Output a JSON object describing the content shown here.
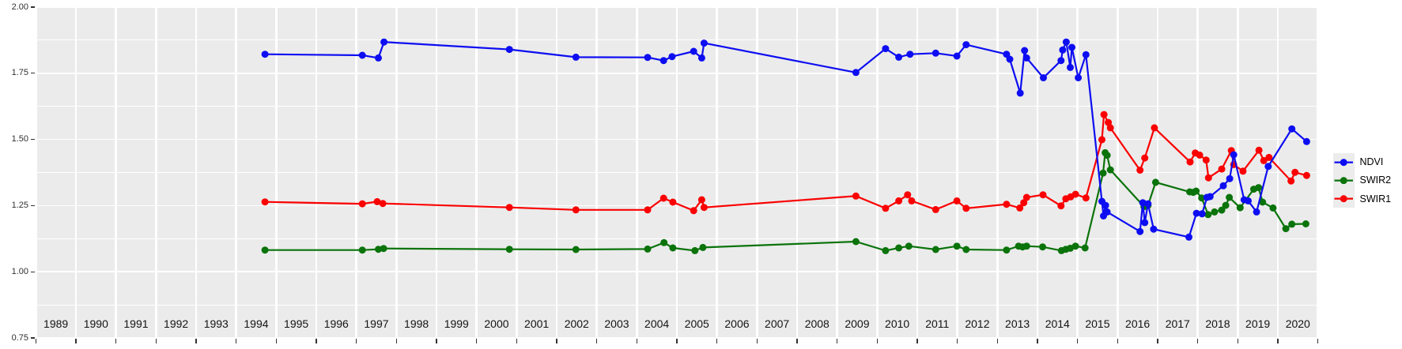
{
  "figure": {
    "background": "#ffffff",
    "panel_background": "#ebebeb",
    "gridline_color": "#ffffff",
    "axis_text_color": "#303030",
    "strip_text_color": "#141414"
  },
  "y_axis": {
    "tick_labels": [
      "2.00",
      "1.75",
      "1.50",
      "1.25",
      "1.00",
      "0.75"
    ],
    "tick_values": [
      2.0,
      1.75,
      1.5,
      1.25,
      1.0,
      0.75
    ],
    "minor_values": [
      1.875,
      1.625,
      1.375,
      1.125,
      0.875
    ]
  },
  "x_axis": {
    "year_labels": [
      "1989",
      "1990",
      "1991",
      "1992",
      "1993",
      "1994",
      "1995",
      "1996",
      "1997",
      "1998",
      "1999",
      "2000",
      "2001",
      "2002",
      "2003",
      "2004",
      "2005",
      "2006",
      "2007",
      "2008",
      "2009",
      "2010",
      "2011",
      "2012",
      "2013",
      "2014",
      "2015",
      "2016",
      "2017",
      "2018",
      "2019",
      "2020"
    ]
  },
  "legend": {
    "position": "right",
    "entries": [
      {
        "label": "NDVI",
        "color": "#0d0df2"
      },
      {
        "label": "SWIR2",
        "color": "#0a730a"
      },
      {
        "label": "SWIR1",
        "color": "#fa0000"
      }
    ]
  },
  "chart_data": {
    "type": "line",
    "title": "",
    "xlabel": "",
    "ylabel": "",
    "x_range": [
      1989,
      2021
    ],
    "ylim": [
      0.75,
      2.0
    ],
    "grid": true,
    "legend_position": "right",
    "series": [
      {
        "name": "NDVI",
        "color": "#0d0df2",
        "points": [
          [
            1994.72,
            1.822
          ],
          [
            1997.15,
            1.818
          ],
          [
            1997.55,
            1.808
          ],
          [
            1997.69,
            1.868
          ],
          [
            2000.82,
            1.84
          ],
          [
            2002.48,
            1.811
          ],
          [
            2004.27,
            1.81
          ],
          [
            2004.67,
            1.798
          ],
          [
            2004.88,
            1.813
          ],
          [
            2005.42,
            1.833
          ],
          [
            2005.62,
            1.808
          ],
          [
            2005.68,
            1.864
          ],
          [
            2009.47,
            1.753
          ],
          [
            2010.21,
            1.843
          ],
          [
            2010.54,
            1.811
          ],
          [
            2010.82,
            1.822
          ],
          [
            2011.46,
            1.826
          ],
          [
            2011.99,
            1.815
          ],
          [
            2012.22,
            1.858
          ],
          [
            2013.23,
            1.822
          ],
          [
            2013.31,
            1.803
          ],
          [
            2013.57,
            1.675
          ],
          [
            2013.68,
            1.836
          ],
          [
            2013.73,
            1.808
          ],
          [
            2014.15,
            1.733
          ],
          [
            2014.59,
            1.798
          ],
          [
            2014.63,
            1.838
          ],
          [
            2014.72,
            1.868
          ],
          [
            2014.82,
            1.772
          ],
          [
            2014.86,
            1.848
          ],
          [
            2015.02,
            1.733
          ],
          [
            2015.21,
            1.82
          ],
          [
            2015.61,
            1.266
          ],
          [
            2015.65,
            1.211
          ],
          [
            2015.7,
            1.251
          ],
          [
            2015.74,
            1.226
          ],
          [
            2016.56,
            1.152
          ],
          [
            2016.63,
            1.261
          ],
          [
            2016.68,
            1.186
          ],
          [
            2016.76,
            1.257
          ],
          [
            2016.9,
            1.161
          ],
          [
            2017.78,
            1.131
          ],
          [
            2017.97,
            1.221
          ],
          [
            2018.11,
            1.219
          ],
          [
            2018.23,
            1.281
          ],
          [
            2018.31,
            1.284
          ],
          [
            2018.64,
            1.325
          ],
          [
            2018.8,
            1.352
          ],
          [
            2018.9,
            1.442
          ],
          [
            2019.16,
            1.272
          ],
          [
            2019.26,
            1.268
          ],
          [
            2019.47,
            1.226
          ],
          [
            2019.76,
            1.398
          ],
          [
            2020.35,
            1.54
          ],
          [
            2020.72,
            1.492
          ]
        ]
      },
      {
        "name": "SWIR2",
        "color": "#0a730a",
        "points": [
          [
            1994.72,
            1.082
          ],
          [
            1997.15,
            1.082
          ],
          [
            1997.55,
            1.085
          ],
          [
            1997.68,
            1.088
          ],
          [
            2000.82,
            1.085
          ],
          [
            2002.48,
            1.084
          ],
          [
            2004.27,
            1.086
          ],
          [
            2004.68,
            1.11
          ],
          [
            2004.9,
            1.09
          ],
          [
            2005.45,
            1.08
          ],
          [
            2005.65,
            1.092
          ],
          [
            2009.47,
            1.114
          ],
          [
            2010.21,
            1.08
          ],
          [
            2010.54,
            1.09
          ],
          [
            2010.79,
            1.097
          ],
          [
            2011.46,
            1.084
          ],
          [
            2011.99,
            1.097
          ],
          [
            2012.22,
            1.084
          ],
          [
            2013.23,
            1.082
          ],
          [
            2013.53,
            1.097
          ],
          [
            2013.63,
            1.094
          ],
          [
            2013.73,
            1.097
          ],
          [
            2014.13,
            1.094
          ],
          [
            2014.6,
            1.08
          ],
          [
            2014.71,
            1.085
          ],
          [
            2014.82,
            1.089
          ],
          [
            2014.95,
            1.097
          ],
          [
            2015.19,
            1.09
          ],
          [
            2015.64,
            1.373
          ],
          [
            2015.69,
            1.45
          ],
          [
            2015.74,
            1.44
          ],
          [
            2015.82,
            1.385
          ],
          [
            2016.66,
            1.246
          ],
          [
            2016.76,
            1.251
          ],
          [
            2016.95,
            1.338
          ],
          [
            2017.8,
            1.302
          ],
          [
            2017.89,
            1.3
          ],
          [
            2017.96,
            1.305
          ],
          [
            2018.1,
            1.279
          ],
          [
            2018.26,
            1.216
          ],
          [
            2018.42,
            1.226
          ],
          [
            2018.6,
            1.233
          ],
          [
            2018.7,
            1.251
          ],
          [
            2018.79,
            1.281
          ],
          [
            2019.06,
            1.242
          ],
          [
            2019.4,
            1.312
          ],
          [
            2019.52,
            1.318
          ],
          [
            2019.62,
            1.263
          ],
          [
            2019.88,
            1.241
          ],
          [
            2020.2,
            1.163
          ],
          [
            2020.35,
            1.18
          ],
          [
            2020.7,
            1.181
          ]
        ]
      },
      {
        "name": "SWIR1",
        "color": "#fa0000",
        "points": [
          [
            1994.72,
            1.264
          ],
          [
            1997.15,
            1.257
          ],
          [
            1997.52,
            1.265
          ],
          [
            1997.66,
            1.258
          ],
          [
            2000.82,
            1.243
          ],
          [
            2002.48,
            1.234
          ],
          [
            2004.27,
            1.234
          ],
          [
            2004.67,
            1.278
          ],
          [
            2004.9,
            1.263
          ],
          [
            2005.42,
            1.231
          ],
          [
            2005.62,
            1.272
          ],
          [
            2005.68,
            1.243
          ],
          [
            2009.47,
            1.286
          ],
          [
            2010.21,
            1.24
          ],
          [
            2010.54,
            1.268
          ],
          [
            2010.76,
            1.291
          ],
          [
            2010.86,
            1.268
          ],
          [
            2011.46,
            1.235
          ],
          [
            2011.99,
            1.268
          ],
          [
            2012.22,
            1.24
          ],
          [
            2013.23,
            1.255
          ],
          [
            2013.56,
            1.241
          ],
          [
            2013.66,
            1.261
          ],
          [
            2013.73,
            1.281
          ],
          [
            2014.14,
            1.291
          ],
          [
            2014.59,
            1.249
          ],
          [
            2014.71,
            1.276
          ],
          [
            2014.83,
            1.283
          ],
          [
            2014.95,
            1.293
          ],
          [
            2015.21,
            1.279
          ],
          [
            2015.61,
            1.499
          ],
          [
            2015.66,
            1.594
          ],
          [
            2015.77,
            1.564
          ],
          [
            2015.82,
            1.544
          ],
          [
            2016.56,
            1.384
          ],
          [
            2016.68,
            1.43
          ],
          [
            2016.92,
            1.544
          ],
          [
            2017.81,
            1.415
          ],
          [
            2017.94,
            1.449
          ],
          [
            2018.05,
            1.441
          ],
          [
            2018.21,
            1.422
          ],
          [
            2018.27,
            1.355
          ],
          [
            2018.6,
            1.388
          ],
          [
            2018.84,
            1.458
          ],
          [
            2018.9,
            1.405
          ],
          [
            2019.13,
            1.38
          ],
          [
            2019.53,
            1.459
          ],
          [
            2019.65,
            1.42
          ],
          [
            2019.78,
            1.432
          ],
          [
            2020.33,
            1.343
          ],
          [
            2020.43,
            1.376
          ],
          [
            2020.72,
            1.364
          ]
        ]
      }
    ]
  }
}
